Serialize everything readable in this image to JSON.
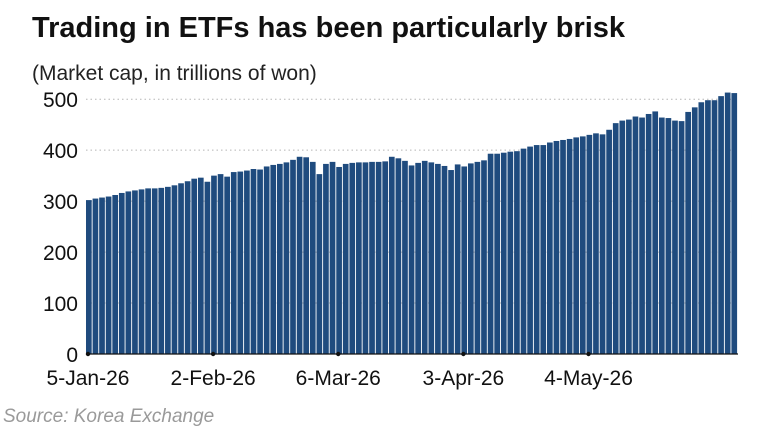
{
  "header": {
    "title": "Trading in ETFs has been particularly brisk",
    "subtitle": "(Market cap, in trillions of won)"
  },
  "footer": {
    "source": "Source: Korea Exchange"
  },
  "chart_data": {
    "type": "bar",
    "title": "Trading in ETFs has been particularly brisk",
    "subtitle": "(Market cap, in trillions of won)",
    "xlabel": "",
    "ylabel": "",
    "ylim": [
      0,
      520
    ],
    "yticks": [
      0,
      100,
      200,
      300,
      400,
      500
    ],
    "grid": true,
    "legend": "none",
    "color": "#1f4b7e",
    "x_tick_labels": [
      "5-Jan-26",
      "2-Feb-26",
      "6-Mar-26",
      "3-Apr-26",
      "4-May-26"
    ],
    "x_tick_positions": [
      0,
      19,
      38,
      57,
      76
    ],
    "values": [
      302,
      305,
      307,
      309,
      312,
      316,
      319,
      321,
      323,
      325,
      325,
      326,
      328,
      331,
      335,
      339,
      344,
      346,
      338,
      350,
      353,
      348,
      357,
      358,
      360,
      363,
      362,
      368,
      371,
      373,
      376,
      381,
      387,
      386,
      377,
      353,
      373,
      377,
      367,
      373,
      375,
      376,
      376,
      377,
      377,
      378,
      387,
      384,
      379,
      370,
      375,
      379,
      376,
      373,
      369,
      361,
      372,
      368,
      374,
      377,
      380,
      393,
      393,
      395,
      397,
      398,
      403,
      407,
      410,
      410,
      415,
      418,
      420,
      422,
      425,
      427,
      430,
      433,
      431,
      440,
      453,
      458,
      460,
      466,
      464,
      471,
      476,
      464,
      463,
      458,
      457,
      475,
      484,
      494,
      498,
      498,
      506,
      513,
      512
    ]
  }
}
